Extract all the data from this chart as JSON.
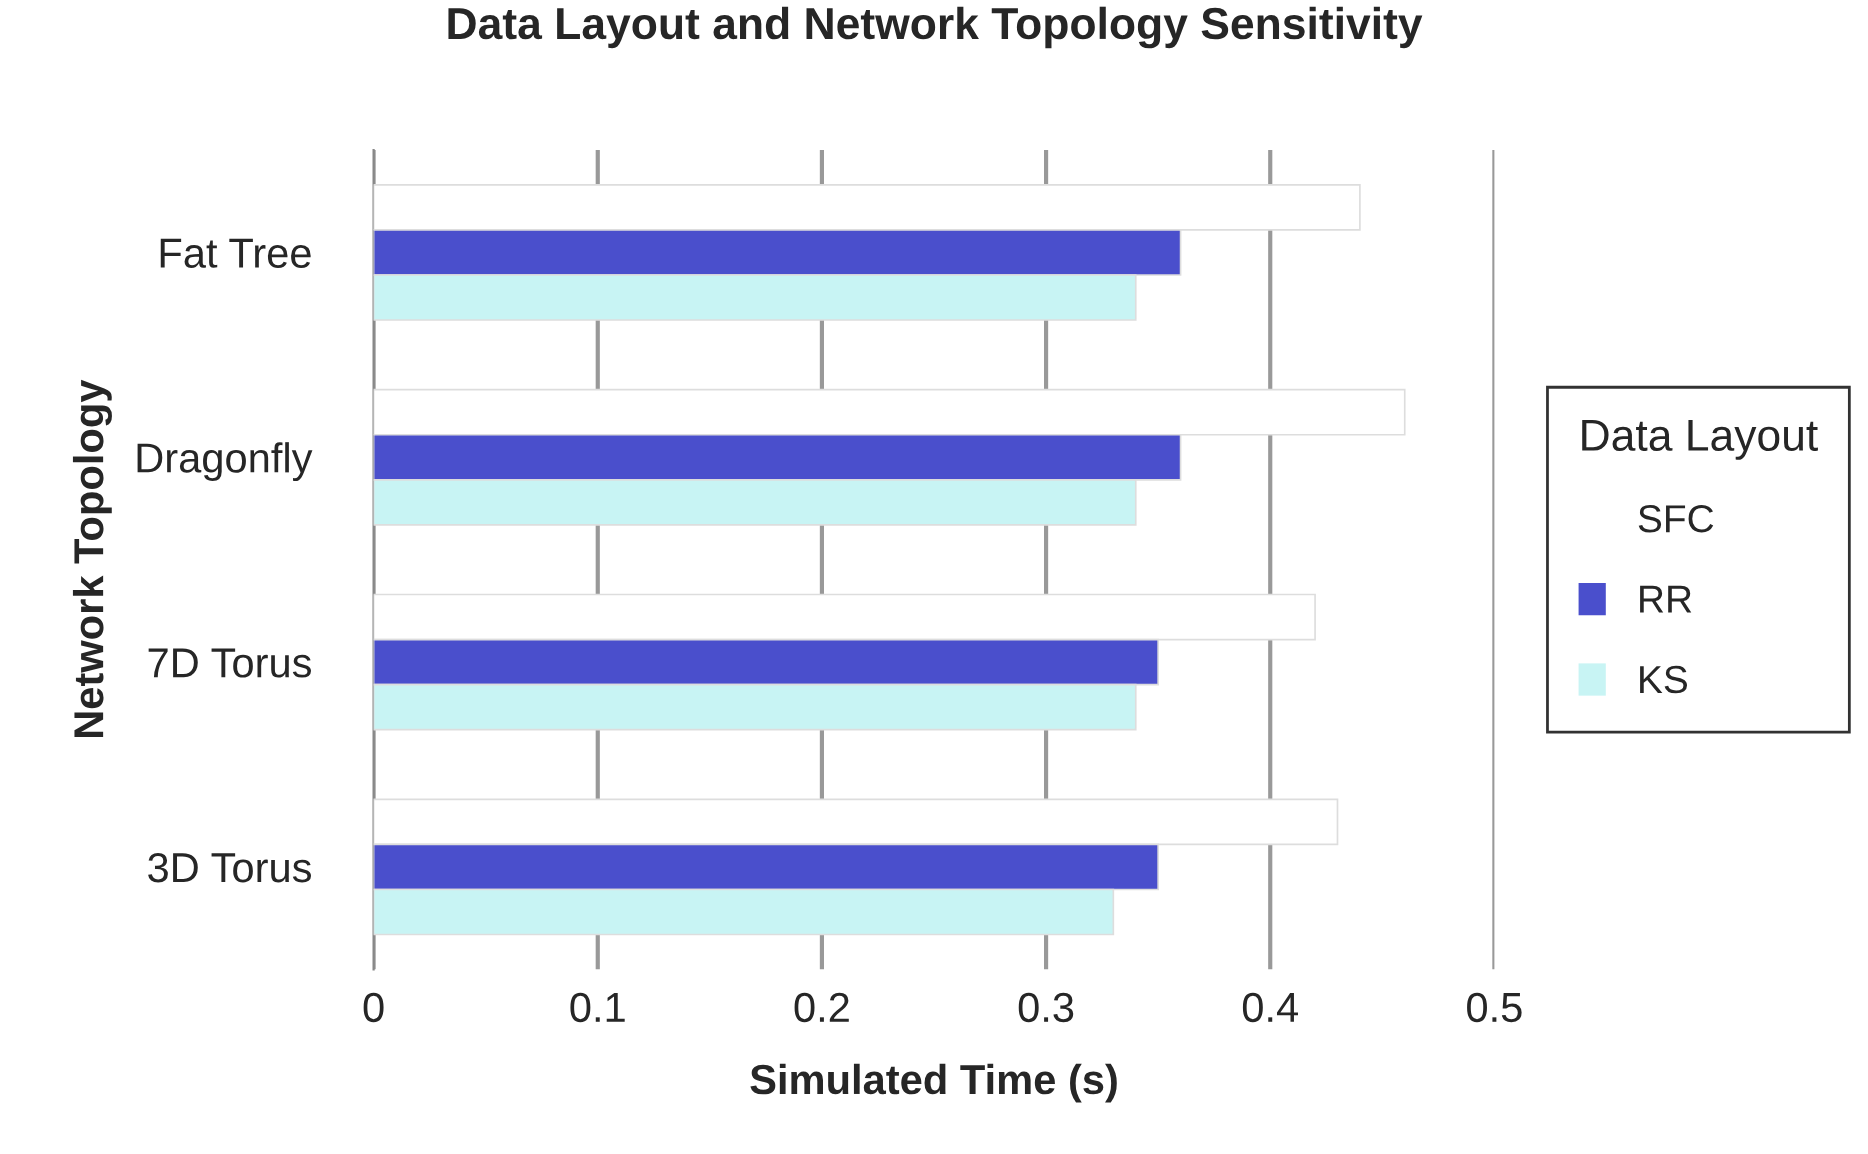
{
  "chart_data": {
    "type": "bar",
    "orientation": "horizontal",
    "title": "Data Layout and Network Topology Sensitivity",
    "xlabel": "Simulated Time (s)",
    "ylabel": "Network Topology",
    "legend_title": "Data Layout",
    "categories": [
      "Fat Tree",
      "Dragonfly",
      "7D Torus",
      "3D Torus"
    ],
    "series": [
      {
        "name": "SFC",
        "color": "#ffffff",
        "values": [
          0.44,
          0.46,
          0.42,
          0.43
        ]
      },
      {
        "name": "RR",
        "color": "#4a4fcc",
        "values": [
          0.36,
          0.36,
          0.35,
          0.35
        ]
      },
      {
        "name": "KS",
        "color": "#c8f4f4",
        "values": [
          0.34,
          0.34,
          0.34,
          0.33
        ]
      }
    ],
    "xlim": [
      0,
      0.5
    ],
    "xticks": [
      0,
      0.1,
      0.2,
      0.3,
      0.4,
      0.5
    ],
    "grid": "x",
    "legend": "right"
  }
}
